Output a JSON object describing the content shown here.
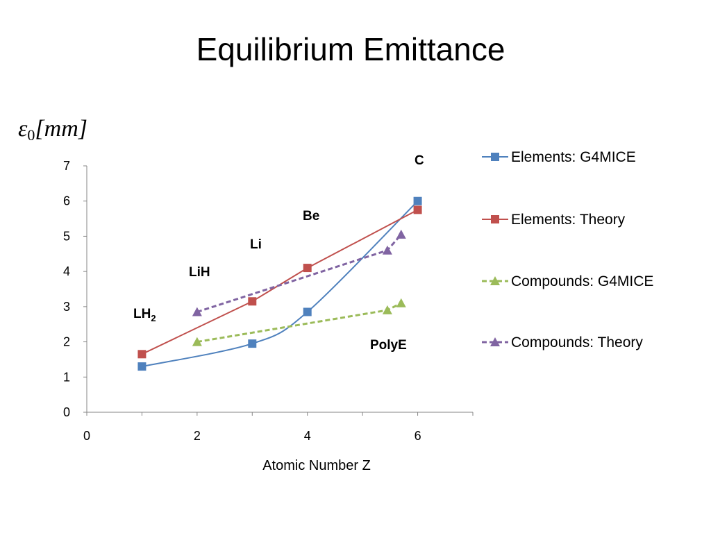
{
  "slide": {
    "title": "Equilibrium Emittance"
  },
  "chart_data": {
    "type": "line",
    "ylabel": {
      "symbol": "ε",
      "subscript": "0",
      "unit": "[mm]"
    },
    "xlabel": "Atomic Number Z",
    "xlim": [
      0,
      7
    ],
    "ylim": [
      0,
      7
    ],
    "xticks": [
      0,
      2,
      4,
      6
    ],
    "yticks": [
      0,
      1,
      2,
      3,
      4,
      5,
      6,
      7
    ],
    "grid": false,
    "legend": "right",
    "series": [
      {
        "name": "Elements: G4MICE",
        "color": "#4F81BD",
        "marker": "square",
        "dashed": false,
        "smooth": true,
        "points": [
          [
            1,
            1.3
          ],
          [
            3,
            1.95
          ],
          [
            4,
            2.85
          ],
          [
            6,
            6.0
          ]
        ]
      },
      {
        "name": "Elements: Theory",
        "color": "#C0504D",
        "marker": "square",
        "dashed": false,
        "smooth": false,
        "points": [
          [
            1,
            1.65
          ],
          [
            3,
            3.15
          ],
          [
            4,
            4.1
          ],
          [
            6,
            5.75
          ]
        ]
      },
      {
        "name": "Compounds: G4MICE",
        "color": "#9BBB59",
        "marker": "triangle",
        "dashed": true,
        "smooth": false,
        "points": [
          [
            2,
            2.0
          ],
          [
            5.45,
            2.9
          ],
          [
            5.7,
            3.1
          ]
        ]
      },
      {
        "name": "Compounds: Theory",
        "color": "#8064A2",
        "marker": "triangle",
        "dashed": true,
        "smooth": false,
        "points": [
          [
            2,
            2.85
          ],
          [
            5.45,
            4.6
          ],
          [
            5.7,
            5.05
          ]
        ]
      }
    ],
    "annotations": [
      {
        "text": "LH",
        "sub": "2"
      },
      {
        "text": "LiH"
      },
      {
        "text": "Li"
      },
      {
        "text": "Be"
      },
      {
        "text": "C"
      },
      {
        "text": "PolyE"
      }
    ]
  }
}
